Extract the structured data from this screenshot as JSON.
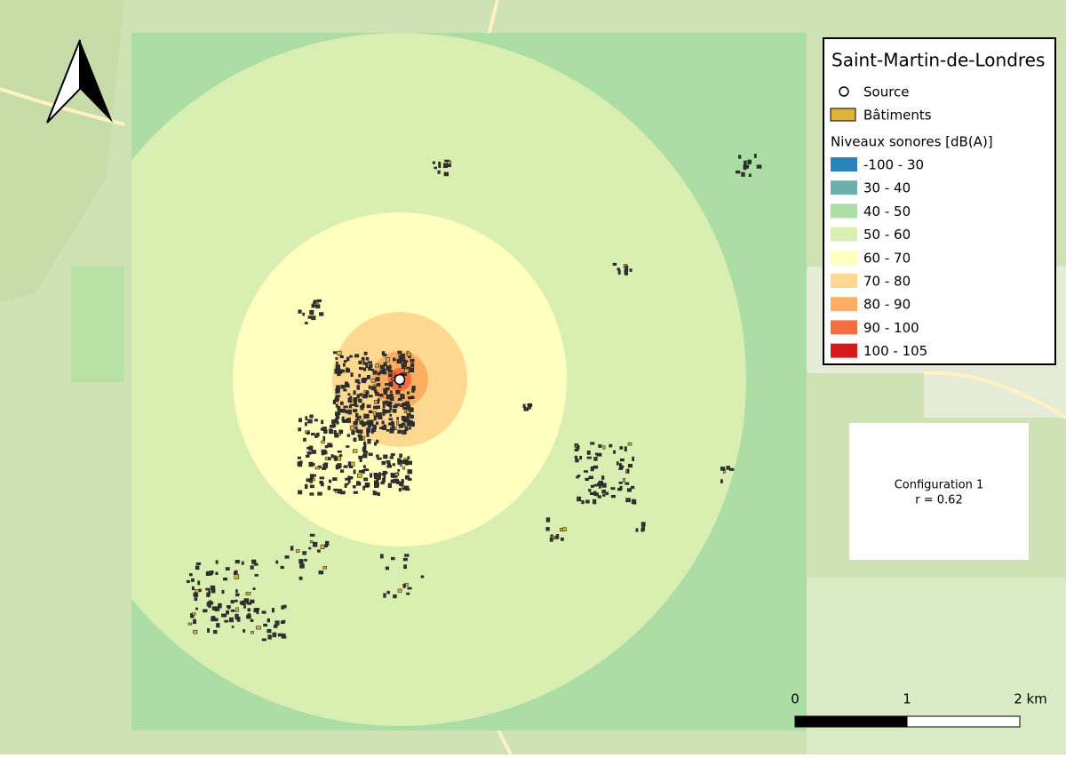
{
  "legend": {
    "title": "Saint-Martin-de-Londres",
    "source": "Source",
    "buildings": "Bâtiments",
    "buildings_color": "#e0b43c",
    "levels_title": "Niveaux sonores [dB(A)]",
    "levels": [
      {
        "label": "-100 - 30",
        "color": "#2b83ba"
      },
      {
        "label": "30 - 40",
        "color": "#6bb0af"
      },
      {
        "label": "40 - 50",
        "color": "#abdda4"
      },
      {
        "label": "50 - 60",
        "color": "#d9efb2"
      },
      {
        "label": "60 - 70",
        "color": "#ffffbf"
      },
      {
        "label": "70 - 80",
        "color": "#fed790"
      },
      {
        "label": "80 - 90",
        "color": "#fdae61"
      },
      {
        "label": "90 - 100",
        "color": "#f46d43"
      },
      {
        "label": "100 - 105",
        "color": "#d7191c"
      }
    ]
  },
  "info": {
    "config": "Configuration 1",
    "r": "r = 0.62"
  },
  "scale_bar": {
    "labels": [
      "0",
      "1",
      "2 km"
    ]
  }
}
